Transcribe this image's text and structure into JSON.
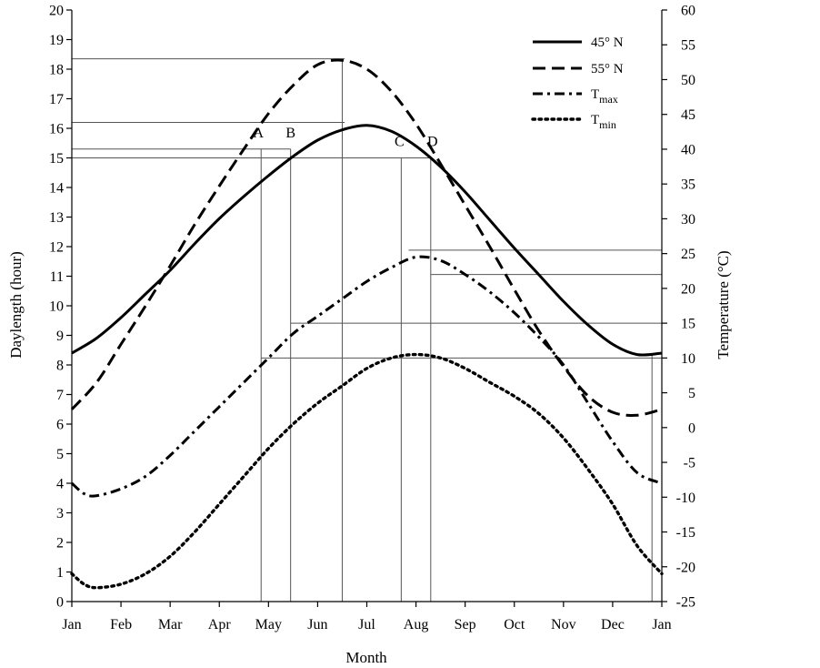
{
  "chart_data": {
    "type": "line",
    "title": "",
    "xlabel": "Month",
    "ylabel_left": "Daylength (hour)",
    "ylabel_right": "Temperature (°C)",
    "x_tick_labels": [
      "Jan",
      "Feb",
      "Mar",
      "Apr",
      "May",
      "Jun",
      "Jul",
      "Aug",
      "Sep",
      "Oct",
      "Nov",
      "Dec",
      "Jan"
    ],
    "xlim": [
      0,
      12
    ],
    "ylim_left": [
      0,
      20
    ],
    "ylim_right": [
      -25,
      60
    ],
    "yticks_left": [
      0,
      1,
      2,
      3,
      4,
      5,
      6,
      7,
      8,
      9,
      10,
      11,
      12,
      13,
      14,
      15,
      16,
      17,
      18,
      19,
      20
    ],
    "yticks_right": [
      -25,
      -20,
      -15,
      -10,
      -5,
      0,
      5,
      10,
      15,
      20,
      25,
      30,
      35,
      40,
      45,
      50,
      55,
      60
    ],
    "legend_position": "top-right",
    "series": [
      {
        "name": "45° N",
        "legend_main": "45° N",
        "legend_sub": "",
        "axis": "left",
        "style": "solid",
        "x": [
          0,
          0.5,
          1,
          1.5,
          2,
          2.5,
          3,
          3.5,
          4,
          4.5,
          5,
          5.5,
          6,
          6.5,
          7,
          7.5,
          8,
          8.5,
          9,
          9.5,
          10,
          10.5,
          11,
          11.5,
          12
        ],
        "values": [
          8.4,
          8.9,
          9.6,
          10.4,
          11.2,
          12.1,
          12.95,
          13.7,
          14.4,
          15.05,
          15.6,
          15.95,
          16.1,
          15.9,
          15.4,
          14.7,
          13.85,
          12.9,
          11.95,
          11.05,
          10.15,
          9.35,
          8.7,
          8.35,
          8.4
        ]
      },
      {
        "name": "55° N",
        "legend_main": "55° N",
        "legend_sub": "",
        "axis": "left",
        "style": "dash",
        "x": [
          0,
          0.5,
          1,
          1.5,
          2,
          2.5,
          3,
          3.5,
          4,
          4.5,
          5,
          5.5,
          6,
          6.5,
          7,
          7.5,
          8,
          8.5,
          9,
          9.5,
          10,
          10.5,
          11,
          11.5,
          12
        ],
        "values": [
          6.5,
          7.4,
          8.7,
          10.0,
          11.35,
          12.75,
          14.05,
          15.3,
          16.5,
          17.45,
          18.15,
          18.3,
          18.0,
          17.25,
          16.15,
          14.8,
          13.4,
          12.0,
          10.55,
          9.15,
          7.95,
          6.95,
          6.4,
          6.3,
          6.5
        ]
      },
      {
        "name": "Tmax",
        "legend_main": "T",
        "legend_sub": "max",
        "axis": "right",
        "style": "dashdot",
        "x": [
          0,
          0.25,
          0.5,
          1,
          1.5,
          2,
          2.5,
          3,
          3.5,
          4,
          4.5,
          5,
          5.5,
          6,
          6.5,
          7,
          7.5,
          8,
          8.5,
          9,
          9.5,
          10,
          10.5,
          11,
          11.5,
          12
        ],
        "values": [
          -8,
          -9.5,
          -9.8,
          -8.8,
          -7,
          -4,
          -0.5,
          3,
          6.5,
          10,
          13.5,
          16,
          18.5,
          21,
          23,
          24.5,
          24,
          22,
          19.5,
          16.5,
          13,
          9,
          3.5,
          -2,
          -6.5,
          -8
        ]
      },
      {
        "name": "Tmin",
        "legend_main": "T",
        "legend_sub": "min",
        "axis": "right",
        "style": "dot",
        "x": [
          0,
          0.25,
          0.5,
          1,
          1.5,
          2,
          2.5,
          3,
          3.5,
          4,
          4.5,
          5,
          5.5,
          6,
          6.5,
          7,
          7.5,
          8,
          8.5,
          9,
          9.5,
          10,
          10.5,
          11,
          11.5,
          12
        ],
        "values": [
          -21,
          -22.5,
          -23,
          -22.5,
          -21,
          -18.5,
          -15,
          -11,
          -7,
          -3,
          0.5,
          3.5,
          6,
          8.5,
          10,
          10.5,
          10,
          8.5,
          6.5,
          4.5,
          2,
          -1.5,
          -6,
          -11,
          -17,
          -21
        ]
      }
    ],
    "reference_lines": {
      "vertical_x": [
        3.85,
        4.45,
        5.5,
        6.7,
        7.3,
        11.8
      ],
      "horizontal_left_y": [
        18.35,
        16.2,
        15.3,
        15.0
      ],
      "horizontal_right_y": [
        25.5,
        22,
        15,
        10
      ]
    },
    "annotations": [
      {
        "text": "A",
        "x": 3.85,
        "y": 15.3
      },
      {
        "text": "B",
        "x": 4.45,
        "y": 15.3
      },
      {
        "text": "C",
        "x": 6.7,
        "y": 15.0
      },
      {
        "text": "D",
        "x": 7.3,
        "y": 15.0
      }
    ]
  }
}
